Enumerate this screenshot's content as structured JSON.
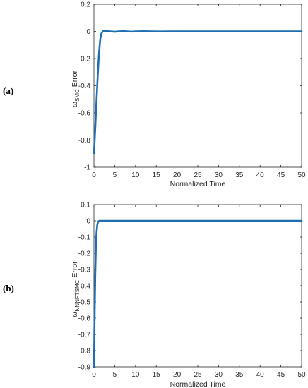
{
  "panels": [
    {
      "label": "(a)",
      "ylabel_main": "ω",
      "ylabel_sub": "SMC",
      "ylabel_suffix": " Error"
    },
    {
      "label": "(b)",
      "ylabel_main": "ω",
      "ylabel_sub": "NNNFTSMC",
      "ylabel_suffix": " Error"
    }
  ],
  "chart_data": [
    {
      "type": "line",
      "title": "",
      "xlabel": "Normalized Time",
      "ylabel": "ω SMC Error",
      "xlim": [
        0,
        50
      ],
      "ylim": [
        -1,
        0.2
      ],
      "xticks": [
        0,
        5,
        10,
        15,
        20,
        25,
        30,
        35,
        40,
        45,
        50
      ],
      "yticks": [
        -1,
        -0.8,
        -0.6,
        -0.4,
        -0.2,
        0,
        0.2
      ],
      "ytick_labels": [
        "-1",
        "-0.8",
        "-0.6",
        "-0.4",
        "-0.2",
        "0",
        "0.2"
      ],
      "grid": false,
      "series": [
        {
          "color": "#1f6eb2",
          "x": [
            0,
            0.3,
            0.6,
            0.9,
            1.2,
            1.5,
            1.8,
            2.1,
            2.5,
            3,
            4,
            5,
            6,
            7,
            8,
            9,
            10,
            12,
            14,
            16,
            18,
            20,
            25,
            30,
            35,
            40,
            45,
            50
          ],
          "y": [
            -0.9,
            -0.72,
            -0.52,
            -0.33,
            -0.17,
            -0.06,
            -0.015,
            0.0,
            0.004,
            0.002,
            0.0,
            -0.003,
            0.0,
            0.002,
            0.0,
            -0.002,
            0.0,
            0.001,
            0.0,
            -0.001,
            0.0,
            0.0,
            0.0,
            0.0,
            0.0,
            0.0,
            0.0,
            0.0
          ]
        }
      ]
    },
    {
      "type": "line",
      "title": "",
      "xlabel": "Normalized Time",
      "ylabel": "ω NNNFTSMC Error",
      "xlim": [
        0,
        50
      ],
      "ylim": [
        -0.9,
        0.1
      ],
      "xticks": [
        0,
        5,
        10,
        15,
        20,
        25,
        30,
        35,
        40,
        45,
        50
      ],
      "yticks": [
        -0.9,
        -0.8,
        -0.7,
        -0.6,
        -0.5,
        -0.4,
        -0.3,
        -0.2,
        -0.1,
        0,
        0.1
      ],
      "ytick_labels": [
        "-0.9",
        "-0.8",
        "-0.7",
        "-0.6",
        "-0.5",
        "-0.4",
        "-0.3",
        "-0.2",
        "-0.1",
        "0",
        "0.1"
      ],
      "grid": false,
      "series": [
        {
          "color": "#1f6eb2",
          "x": [
            0,
            0.15,
            0.3,
            0.45,
            0.6,
            0.8,
            1.0,
            1.3,
            1.8,
            3,
            5,
            10,
            20,
            30,
            40,
            50
          ],
          "y": [
            -0.9,
            -0.6,
            -0.35,
            -0.18,
            -0.08,
            -0.025,
            -0.005,
            0.0,
            0.0,
            0.0,
            0.0,
            0.0,
            0.0,
            0.0,
            0.0,
            0.0
          ]
        }
      ]
    }
  ]
}
